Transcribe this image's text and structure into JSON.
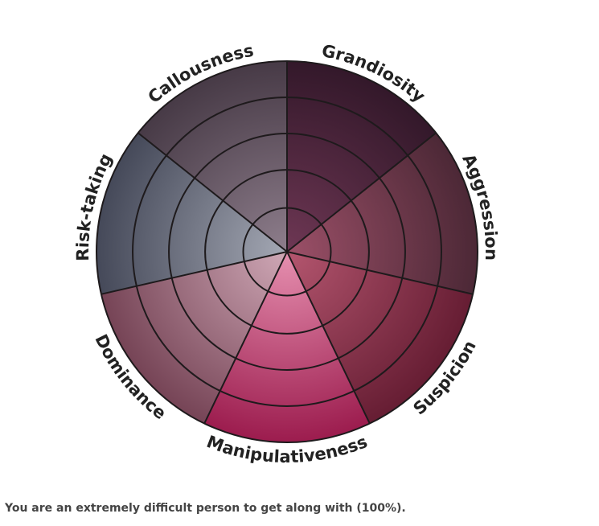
{
  "chart_data": {
    "type": "polar-area",
    "categories": [
      "Grandiosity",
      "Aggression",
      "Suspicion",
      "Manipulativeness",
      "Dominance",
      "Risk-taking",
      "Callousness"
    ],
    "values": [
      100,
      100,
      100,
      100,
      100,
      100,
      100
    ],
    "rlim": [
      0,
      100
    ],
    "rings": 5,
    "grid": true,
    "colors": [
      {
        "inner": "#6e3754",
        "outer": "#33182a"
      },
      {
        "inner": "#9c5068",
        "outer": "#4c2836"
      },
      {
        "inner": "#b4566f",
        "outer": "#661d33"
      },
      {
        "inner": "#e690b0",
        "outer": "#9c1c4e"
      },
      {
        "inner": "#cfa8b6",
        "outer": "#764456"
      },
      {
        "inner": "#a4a8b4",
        "outer": "#454959"
      },
      {
        "inner": "#8e7e8c",
        "outer": "#473a46"
      }
    ]
  },
  "summary": "You are an extremely difficult person to get along with (100%)."
}
